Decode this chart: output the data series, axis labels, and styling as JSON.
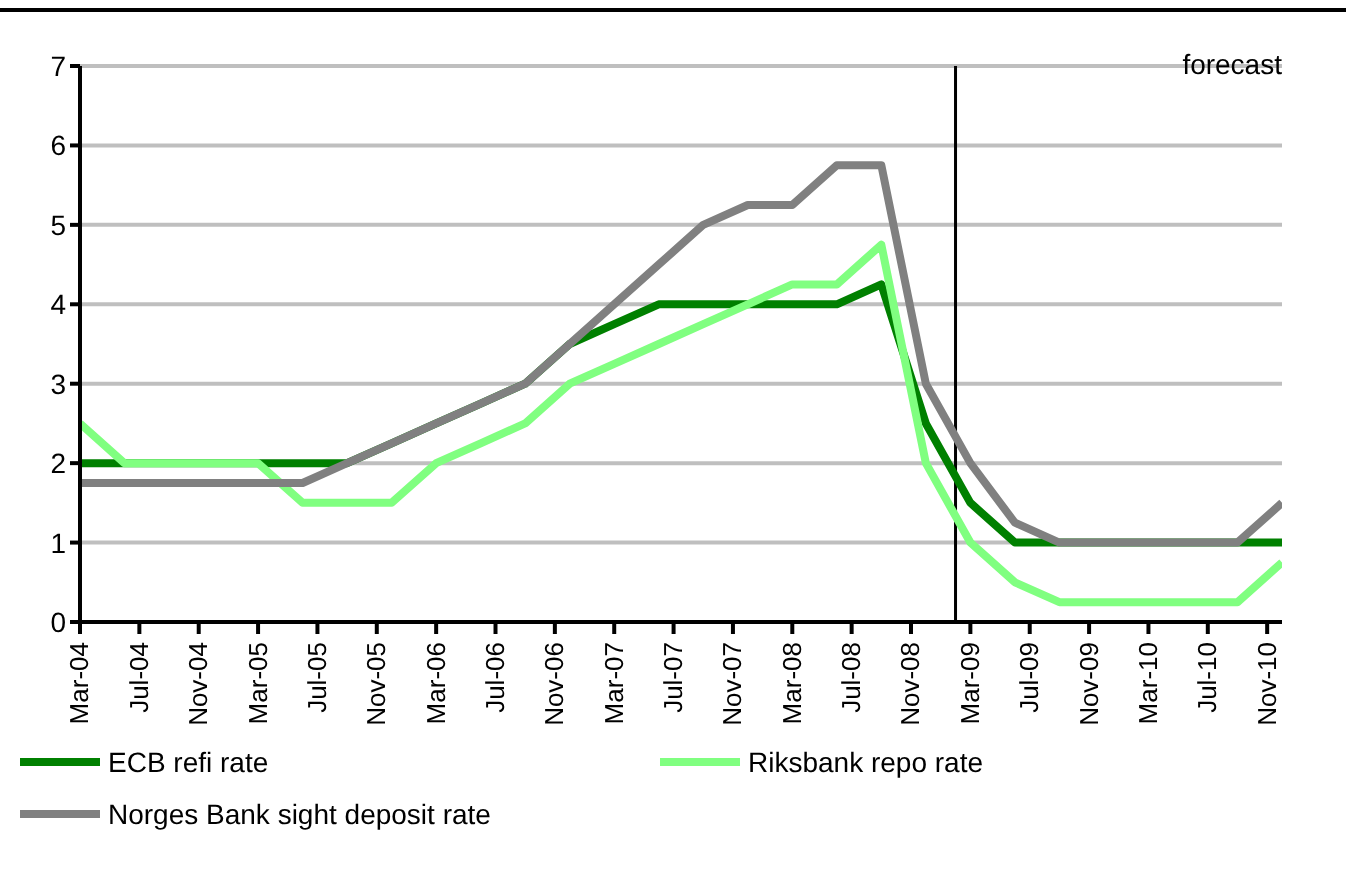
{
  "chart_data": {
    "type": "line",
    "x": [
      "2004-03",
      "2004-06",
      "2004-09",
      "2004-12",
      "2005-03",
      "2005-06",
      "2005-09",
      "2005-12",
      "2006-03",
      "2006-06",
      "2006-09",
      "2006-12",
      "2007-03",
      "2007-06",
      "2007-09",
      "2007-12",
      "2008-03",
      "2008-06",
      "2008-09",
      "2008-12",
      "2009-03",
      "2009-06",
      "2009-09",
      "2009-12",
      "2010-03",
      "2010-06",
      "2010-09",
      "2010-12"
    ],
    "series": [
      {
        "name": "ECB refi rate",
        "color": "#008000",
        "values": [
          2,
          2,
          2,
          2,
          2,
          2,
          2,
          2.25,
          2.5,
          2.75,
          3,
          3.5,
          3.75,
          4,
          4,
          4,
          4,
          4,
          4.25,
          2.5,
          1.5,
          1,
          1,
          1,
          1,
          1,
          1,
          1
        ]
      },
      {
        "name": "Riksbank repo rate",
        "color": "#80ff80",
        "values": [
          2.5,
          2,
          2,
          2,
          2,
          1.5,
          1.5,
          1.5,
          2,
          2.25,
          2.5,
          3,
          3.25,
          3.5,
          3.75,
          4,
          4.25,
          4.25,
          4.75,
          2,
          1,
          0.5,
          0.25,
          0.25,
          0.25,
          0.25,
          0.25,
          0.75
        ]
      },
      {
        "name": "Norges Bank sight deposit rate",
        "color": "#808080",
        "values": [
          1.75,
          1.75,
          1.75,
          1.75,
          1.75,
          1.75,
          2,
          2.25,
          2.5,
          2.75,
          3,
          3.5,
          4,
          4.5,
          5,
          5.25,
          5.25,
          5.75,
          5.75,
          3,
          2,
          1.25,
          1,
          1,
          1,
          1,
          1,
          1.5
        ]
      }
    ],
    "xlim": [
      "2004-03",
      "2010-12"
    ],
    "xticks": [
      {
        "value": "2004-03",
        "label": "Mar-04"
      },
      {
        "value": "2004-07",
        "label": "Jul-04"
      },
      {
        "value": "2004-11",
        "label": "Nov-04"
      },
      {
        "value": "2005-03",
        "label": "Mar-05"
      },
      {
        "value": "2005-07",
        "label": "Jul-05"
      },
      {
        "value": "2005-11",
        "label": "Nov-05"
      },
      {
        "value": "2006-03",
        "label": "Mar-06"
      },
      {
        "value": "2006-07",
        "label": "Jul-06"
      },
      {
        "value": "2006-11",
        "label": "Nov-06"
      },
      {
        "value": "2007-03",
        "label": "Mar-07"
      },
      {
        "value": "2007-07",
        "label": "Jul-07"
      },
      {
        "value": "2007-11",
        "label": "Nov-07"
      },
      {
        "value": "2008-03",
        "label": "Mar-08"
      },
      {
        "value": "2008-07",
        "label": "Jul-08"
      },
      {
        "value": "2008-11",
        "label": "Nov-08"
      },
      {
        "value": "2009-03",
        "label": "Mar-09"
      },
      {
        "value": "2009-07",
        "label": "Jul-09"
      },
      {
        "value": "2009-11",
        "label": "Nov-09"
      },
      {
        "value": "2010-03",
        "label": "Mar-10"
      },
      {
        "value": "2010-07",
        "label": "Jul-10"
      },
      {
        "value": "2010-11",
        "label": "Nov-10"
      }
    ],
    "ylim": [
      0,
      7
    ],
    "yticks": [
      0,
      1,
      2,
      3,
      4,
      5,
      6,
      7
    ],
    "ref_lines": [
      {
        "axis": "x",
        "value": "2009-02",
        "color": "#000000"
      }
    ],
    "annotations": [
      "forecast"
    ],
    "grid": "y",
    "legend": "bottom",
    "marker": "none",
    "line_style": "solid"
  }
}
